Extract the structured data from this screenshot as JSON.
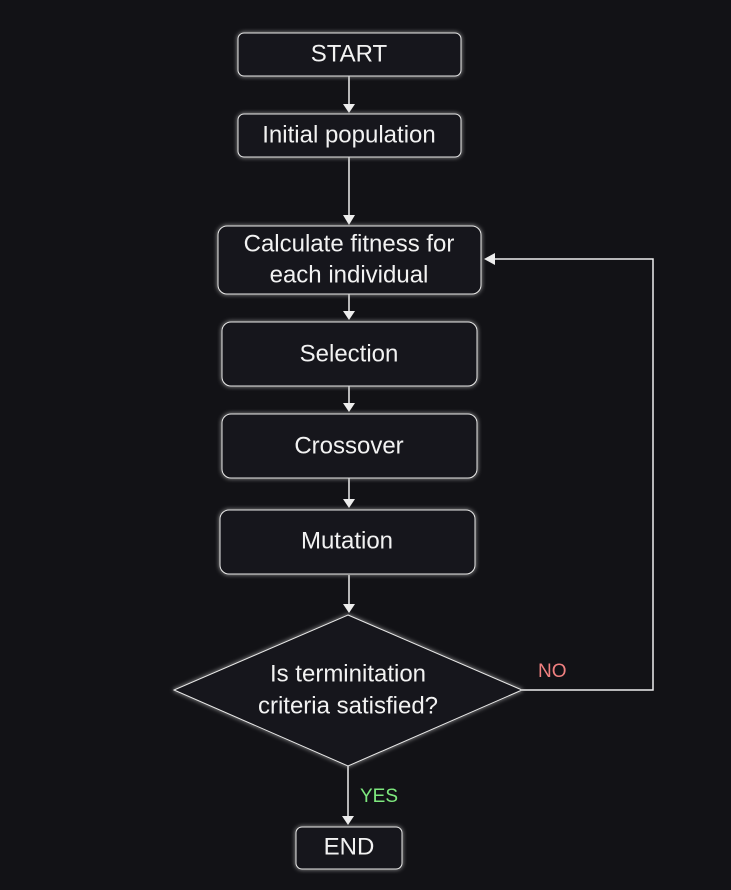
{
  "nodes": {
    "start": "START",
    "initial_population": "Initial population",
    "fitness_line1": "Calculate fitness for",
    "fitness_line2": "each individual",
    "selection": "Selection",
    "crossover": "Crossover",
    "mutation": "Mutation",
    "decision_line1": "Is terminitation",
    "decision_line2": "criteria satisfied?",
    "end": "END"
  },
  "edge_labels": {
    "no": "NO",
    "yes": "YES"
  },
  "colors": {
    "background": "#121216",
    "node_fill": "#18181c",
    "stroke": "#e8e8e8",
    "text": "#f2f2f2",
    "no_label": "#f08080",
    "yes_label": "#7ee87e"
  }
}
